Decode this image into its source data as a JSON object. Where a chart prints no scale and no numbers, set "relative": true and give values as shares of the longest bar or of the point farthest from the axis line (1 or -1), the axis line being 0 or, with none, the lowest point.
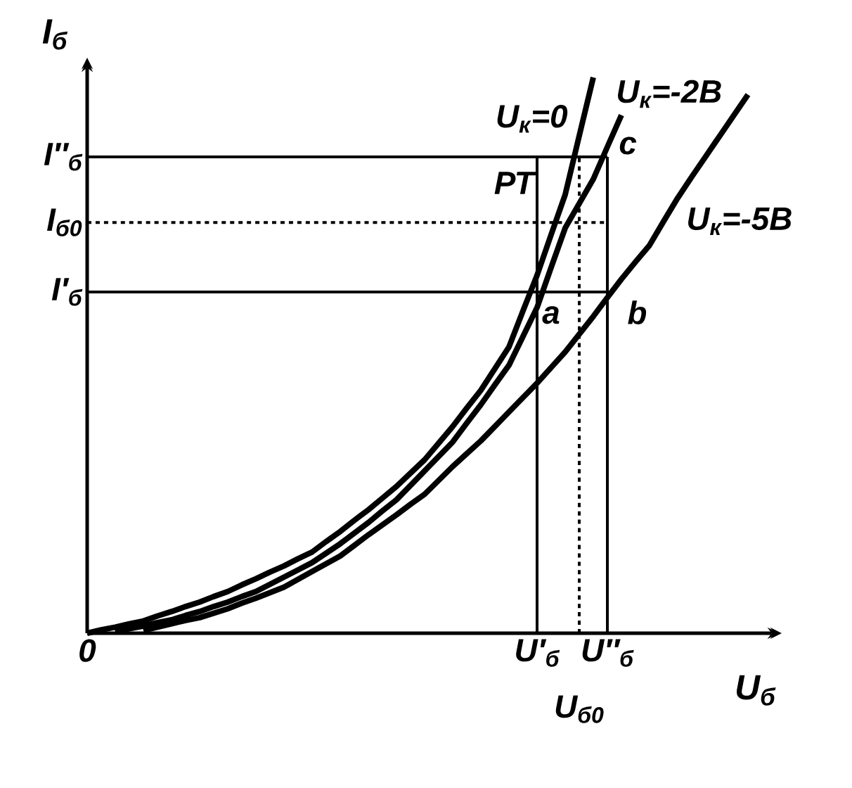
{
  "chart_data": {
    "type": "line",
    "relative": true,
    "xlabel": "U$_{б}$",
    "ylabel": "I$_{б}$",
    "categories": [
      "0",
      null,
      null,
      null,
      null,
      null,
      null,
      null,
      null,
      null,
      null,
      null,
      null,
      null,
      null,
      null,
      null,
      null,
      null,
      null,
      null,
      null,
      null,
      null,
      null,
      null,
      null,
      null,
      null,
      null,
      null,
      null,
      "U′$_{б}$",
      null,
      null,
      "U$_{б0}$",
      null,
      "U″$_{б}$",
      null,
      null,
      null,
      null,
      null,
      null,
      null,
      null,
      null,
      null,
      null
    ],
    "series": [
      {
        "name": "U$_{к}$=0",
        "color": "#000000",
        "values": [
          0,
          0.006,
          0.011,
          0.017,
          0.022,
          0.031,
          0.039,
          0.048,
          0.056,
          0.066,
          0.075,
          0.087,
          0.098,
          0.11,
          0.121,
          0.134,
          0.146,
          0.165,
          0.183,
          0.203,
          0.222,
          0.243,
          0.264,
          0.288,
          0.312,
          0.342,
          0.372,
          0.405,
          0.437,
          0.476,
          0.515,
          0.58,
          0.644,
          0.717,
          0.789,
          0.895,
          1,
          null,
          null,
          null,
          null,
          null,
          null,
          null,
          null,
          null,
          null,
          null,
          null
        ]
      },
      {
        "name": "U$_{к}$=-2В",
        "color": "#000000",
        "values": [
          null,
          null,
          0.002,
          0.008,
          0.013,
          0.019,
          0.024,
          0.032,
          0.039,
          0.048,
          0.056,
          0.066,
          0.075,
          0.088,
          0.101,
          0.114,
          0.127,
          0.144,
          0.161,
          0.18,
          0.199,
          0.22,
          0.24,
          0.266,
          0.292,
          0.318,
          0.344,
          0.378,
          0.411,
          0.447,
          0.482,
          0.534,
          0.586,
          0.658,
          0.729,
          0.773,
          0.817,
          0.875,
          0.932,
          null,
          null,
          null,
          null,
          null,
          null,
          null,
          null,
          null,
          null
        ]
      },
      {
        "name": "U$_{к}$=-5В",
        "color": "#000000",
        "values": [
          null,
          null,
          null,
          null,
          0.005,
          0.011,
          0.017,
          0.023,
          0.028,
          0.036,
          0.044,
          0.054,
          0.063,
          0.073,
          0.083,
          0.097,
          0.111,
          0.125,
          0.139,
          0.158,
          0.177,
          0.195,
          0.213,
          0.232,
          0.25,
          0.275,
          0.3,
          0.323,
          0.346,
          0.372,
          0.398,
          0.424,
          0.45,
          0.478,
          0.506,
          0.538,
          0.57,
          0.604,
          0.637,
          0.668,
          0.698,
          0.741,
          0.783,
          0.821,
          0.858,
          0.895,
          0.932,
          0.969,
          null
        ]
      }
    ],
    "ref_lines": [
      {
        "axis": "y",
        "value": 0.857,
        "label": "I″$_{б}$"
      },
      {
        "axis": "y",
        "value": 0.739,
        "label": "I$_{б0}$",
        "line_style": "dashed"
      },
      {
        "axis": "y",
        "value": 0.614,
        "label": "I′$_{б}$"
      },
      {
        "axis": "x",
        "value": "U′$_{б}$"
      },
      {
        "axis": "x",
        "value": "U$_{б0}$",
        "line_style": "dashed"
      },
      {
        "axis": "x",
        "value": "U″$_{б}$"
      }
    ],
    "annotations": [
      "a",
      "b",
      "c",
      "РТ"
    ]
  }
}
